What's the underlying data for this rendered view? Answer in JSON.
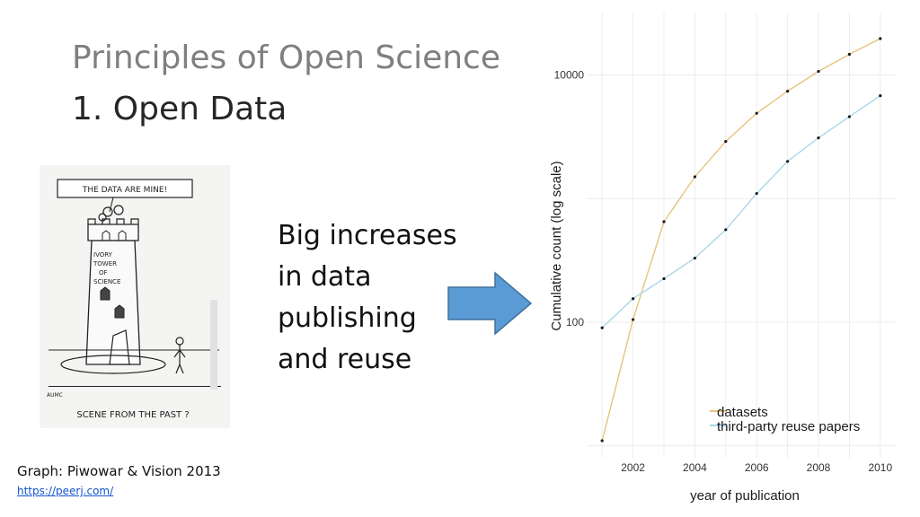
{
  "slide": {
    "title": "Principles of Open Science",
    "subtitle": "1. Open Data",
    "body_lines": [
      "Big increases",
      "in data",
      "publishing",
      "and reuse"
    ],
    "credit": "Graph: Piwowar & Vision 2013",
    "link": "https://peerj.com/"
  },
  "cartoon": {
    "caption": "THE DATA ARE MINE!",
    "tower_label": "IVORY TOWER OF SCIENCE",
    "bottom_caption": "SCENE FROM THE PAST ?",
    "signature": "AUMC"
  },
  "colors": {
    "arrow_fill": "#5b9bd5",
    "arrow_stroke": "#41719c",
    "datasets": "#e8c37e",
    "reuse": "#a9d8ea",
    "point": "#1a1a1a",
    "panel_bg": "#ffffff",
    "grid": "#ececec"
  },
  "chart_data": {
    "type": "line",
    "xlabel": "year of publication",
    "ylabel": "Cumulative count (log scale)",
    "y_scale": "log",
    "x_ticks": [
      2002,
      2004,
      2006,
      2008,
      2010
    ],
    "x_tick_labels": [
      "2002",
      "2004",
      "2006",
      "2008",
      "2010"
    ],
    "y_ticks": [
      100,
      10000
    ],
    "y_tick_labels": [
      "100",
      "10000"
    ],
    "xlim": [
      2000.5,
      2010.5
    ],
    "ylim": [
      8,
      32000
    ],
    "legend_position": "bottom-right",
    "x": [
      2001,
      2002,
      2003,
      2004,
      2005,
      2006,
      2007,
      2008,
      2009,
      2010
    ],
    "series": [
      {
        "name": "datasets",
        "values": [
          11,
          105,
          650,
          1500,
          2900,
          4900,
          7400,
          10700,
          14700,
          19700
        ]
      },
      {
        "name": "third-party reuse papers",
        "values": [
          90,
          155,
          225,
          330,
          560,
          1100,
          2000,
          3100,
          4600,
          6800
        ]
      }
    ]
  }
}
